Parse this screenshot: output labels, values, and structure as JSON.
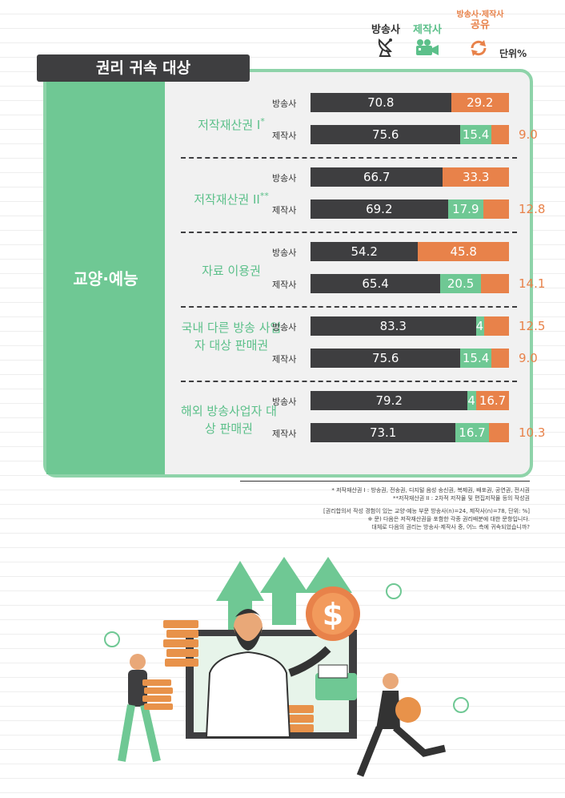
{
  "legend": {
    "broadcaster": "방송사",
    "producer": "제작사",
    "shared_line1": "방송사·제작사",
    "shared_line2": "공유",
    "unit": "단위%"
  },
  "title": "권리 귀속 대상",
  "category": "교양·예능",
  "colors": {
    "broadcaster": "#3e3e40",
    "producer": "#6fc894",
    "shared": "#e8824a"
  },
  "chart_data": {
    "type": "bar",
    "orientation": "horizontal",
    "stacked": true,
    "title": "권리 귀속 대상",
    "category": "교양·예능",
    "unit": "단위%",
    "series_names": [
      "방송사",
      "제작사",
      "방송사·제작사 공유"
    ],
    "groups": [
      {
        "label": "저작재산권 I",
        "mark": "*",
        "rows": [
          {
            "label": "방송사",
            "values": [
              70.8,
              0,
              29.2
            ]
          },
          {
            "label": "제작사",
            "values": [
              75.6,
              15.4,
              9.0
            ]
          }
        ]
      },
      {
        "label": "저작재산권 II",
        "mark": "**",
        "rows": [
          {
            "label": "방송사",
            "values": [
              66.7,
              0,
              33.3
            ]
          },
          {
            "label": "제작사",
            "values": [
              69.2,
              17.9,
              12.8
            ]
          }
        ]
      },
      {
        "label": "자료 이용권",
        "mark": "",
        "rows": [
          {
            "label": "방송사",
            "values": [
              54.2,
              0,
              45.8
            ]
          },
          {
            "label": "제작사",
            "values": [
              65.4,
              20.5,
              14.1
            ]
          }
        ]
      },
      {
        "label": "국내 다른 방송 사업자 대상 판매권",
        "mark": "",
        "rows": [
          {
            "label": "방송사",
            "values": [
              83.3,
              4.2,
              12.5
            ]
          },
          {
            "label": "제작사",
            "values": [
              75.6,
              15.4,
              9.0
            ]
          }
        ]
      },
      {
        "label": "해외 방송사업자 대상 판매권",
        "mark": "",
        "rows": [
          {
            "label": "방송사",
            "values": [
              79.2,
              4.2,
              16.7
            ]
          },
          {
            "label": "제작사",
            "values": [
              73.1,
              16.7,
              10.3
            ]
          }
        ]
      }
    ]
  },
  "notes": {
    "n1": "* 저작재산권 I : 방송권, 전송권, 디지털 음성 송신권, 복제권, 배포권, 공연권, 전시권",
    "n2": "**저작재산권 II : 2차적 저작물 및 편집저작물 등의 작성권",
    "n3": "[권리합의서 작성 경험이 있는 교양·예능 부문 방송사(n)=24, 제작사(n)=78, 단위: %]",
    "n4": "※ 문) 다음은 저작재산권을 포함한 각종 권리배분에 대한 문항입니다.",
    "n5": "대체로 다음의 권리는 방송사·제작사 중, 어느 측에 귀속되었습니까?"
  }
}
